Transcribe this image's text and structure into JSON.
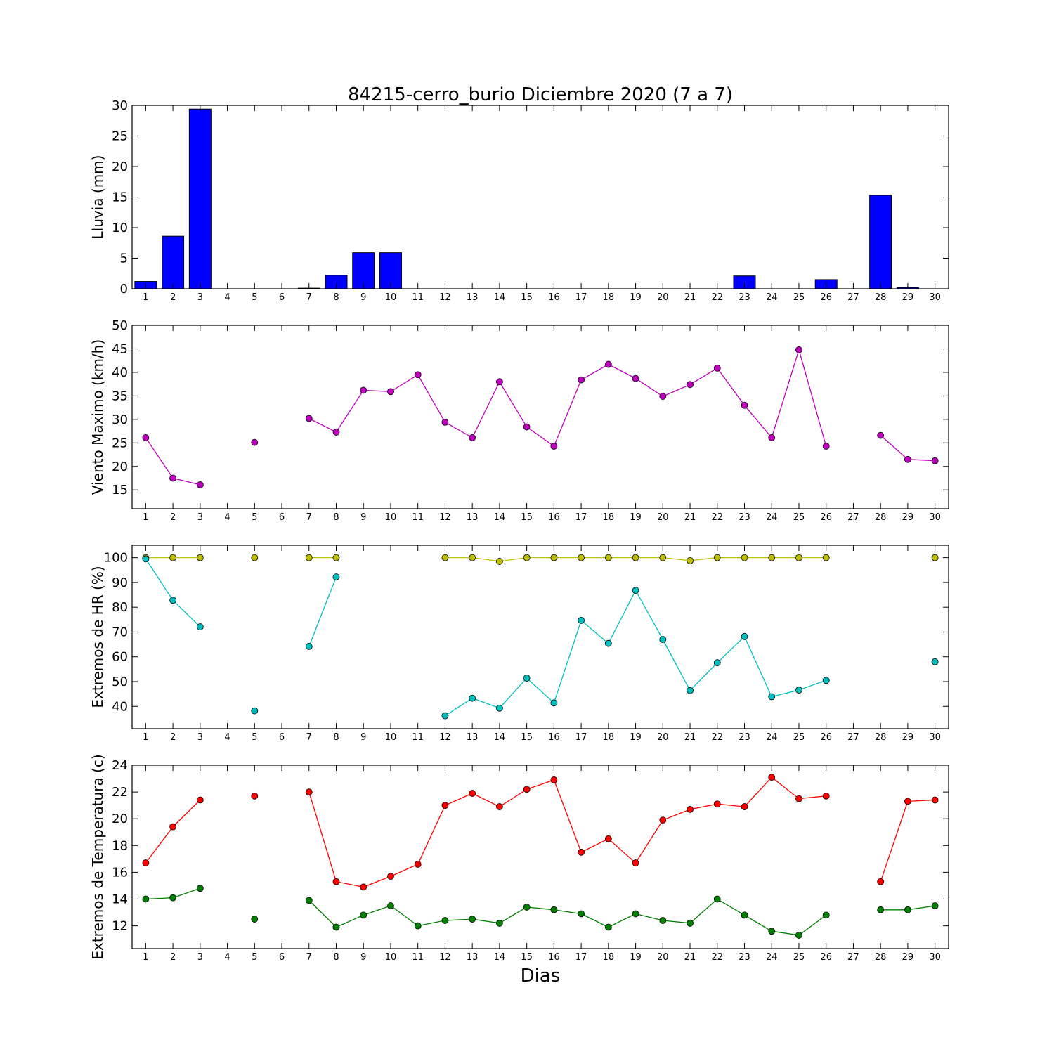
{
  "title": "84215-cerro_burio Diciembre 2020  (7 a 7)",
  "xlabel": "Dias",
  "chart_data": [
    {
      "type": "bar",
      "ylabel": "Lluvia (mm)",
      "ylim": [
        0,
        30
      ],
      "yticks": [
        0,
        5,
        10,
        15,
        20,
        25,
        30
      ],
      "xticks": [
        1,
        2,
        3,
        4,
        5,
        6,
        7,
        8,
        9,
        10,
        11,
        12,
        13,
        14,
        15,
        16,
        17,
        18,
        19,
        20,
        21,
        22,
        23,
        24,
        25,
        26,
        27,
        28,
        29,
        30
      ],
      "x": [
        1,
        2,
        3,
        4,
        5,
        6,
        7,
        8,
        9,
        10,
        11,
        12,
        13,
        14,
        15,
        16,
        17,
        18,
        19,
        20,
        21,
        22,
        23,
        24,
        25,
        26,
        27,
        28,
        29,
        30
      ],
      "series": [
        {
          "color": "#0000ff",
          "values": [
            1.2,
            8.6,
            29.4,
            0,
            0,
            0,
            0.1,
            2.2,
            5.9,
            5.9,
            0,
            0,
            0,
            0,
            0,
            0,
            0,
            0,
            0,
            0,
            0,
            0,
            2.1,
            0,
            0,
            1.5,
            null,
            15.3,
            0.2,
            0
          ]
        }
      ]
    },
    {
      "type": "line",
      "ylabel": "Viento Maximo (km/h)",
      "ylim": [
        11,
        50
      ],
      "yticks": [
        15,
        20,
        25,
        30,
        35,
        40,
        45,
        50
      ],
      "xticks": [
        1,
        2,
        3,
        4,
        5,
        6,
        7,
        8,
        9,
        10,
        11,
        12,
        13,
        14,
        15,
        16,
        17,
        18,
        19,
        20,
        21,
        22,
        23,
        24,
        25,
        26,
        27,
        28,
        29,
        30
      ],
      "x": [
        1,
        2,
        3,
        4,
        5,
        6,
        7,
        8,
        9,
        10,
        11,
        12,
        13,
        14,
        15,
        16,
        17,
        18,
        19,
        20,
        21,
        22,
        23,
        24,
        25,
        26,
        27,
        28,
        29,
        30
      ],
      "series": [
        {
          "color": "#bf00bf",
          "values": [
            26.1,
            17.5,
            16.1,
            null,
            25.1,
            null,
            30.2,
            27.3,
            36.2,
            35.9,
            39.5,
            29.4,
            26.1,
            38.0,
            28.4,
            24.3,
            38.4,
            41.7,
            38.7,
            34.9,
            37.4,
            40.9,
            33.0,
            26.1,
            44.8,
            24.3,
            null,
            26.6,
            21.5,
            21.2
          ]
        }
      ]
    },
    {
      "type": "line",
      "ylabel": "Extremos de HR (%)",
      "ylim": [
        31,
        105
      ],
      "yticks": [
        40,
        50,
        60,
        70,
        80,
        90,
        100
      ],
      "xticks": [
        1,
        2,
        3,
        4,
        5,
        6,
        7,
        8,
        9,
        10,
        11,
        12,
        13,
        14,
        15,
        16,
        17,
        18,
        19,
        20,
        21,
        22,
        23,
        24,
        25,
        26,
        27,
        28,
        29,
        30
      ],
      "x": [
        1,
        2,
        3,
        4,
        5,
        6,
        7,
        8,
        9,
        10,
        11,
        12,
        13,
        14,
        15,
        16,
        17,
        18,
        19,
        20,
        21,
        22,
        23,
        24,
        25,
        26,
        27,
        28,
        29,
        30
      ],
      "series": [
        {
          "color": "#bfbf00",
          "values": [
            100,
            100,
            100,
            null,
            100,
            null,
            100,
            100,
            null,
            null,
            null,
            100,
            100,
            98.5,
            100,
            100,
            100,
            100,
            100,
            100,
            98.8,
            100,
            100,
            100,
            100,
            100,
            null,
            null,
            null,
            100
          ]
        },
        {
          "color": "#00bfbf",
          "values": [
            99.5,
            82.8,
            72.1,
            null,
            38.2,
            null,
            64.2,
            92.2,
            null,
            null,
            null,
            36.2,
            43.3,
            39.3,
            51.4,
            41.4,
            74.7,
            65.4,
            86.8,
            67.0,
            46.4,
            57.6,
            68.2,
            43.9,
            46.6,
            50.5,
            null,
            null,
            null,
            58.0
          ]
        }
      ]
    },
    {
      "type": "line",
      "ylabel": "Extremos de Temperatura (c)",
      "ylim": [
        10.3,
        24
      ],
      "yticks": [
        12,
        14,
        16,
        18,
        20,
        22,
        24
      ],
      "xticks": [
        1,
        2,
        3,
        4,
        5,
        6,
        7,
        8,
        9,
        10,
        11,
        12,
        13,
        14,
        15,
        16,
        17,
        18,
        19,
        20,
        21,
        22,
        23,
        24,
        25,
        26,
        27,
        28,
        29,
        30
      ],
      "x": [
        1,
        2,
        3,
        4,
        5,
        6,
        7,
        8,
        9,
        10,
        11,
        12,
        13,
        14,
        15,
        16,
        17,
        18,
        19,
        20,
        21,
        22,
        23,
        24,
        25,
        26,
        27,
        28,
        29,
        30
      ],
      "series": [
        {
          "color": "#ff0000",
          "values": [
            16.7,
            19.4,
            21.4,
            null,
            21.7,
            null,
            22.0,
            15.3,
            14.9,
            15.7,
            16.6,
            21.0,
            21.9,
            20.9,
            22.2,
            22.9,
            17.5,
            18.5,
            16.7,
            19.9,
            20.7,
            21.1,
            20.9,
            23.1,
            21.5,
            21.7,
            null,
            15.3,
            21.3,
            21.4
          ]
        },
        {
          "color": "#008000",
          "values": [
            14.0,
            14.1,
            14.8,
            null,
            12.5,
            null,
            13.9,
            11.9,
            12.8,
            13.5,
            12.0,
            12.4,
            12.5,
            12.2,
            13.4,
            13.2,
            12.9,
            11.9,
            12.9,
            12.4,
            12.2,
            14.0,
            12.8,
            11.6,
            11.3,
            12.8,
            null,
            13.2,
            13.2,
            13.5
          ]
        }
      ]
    }
  ]
}
